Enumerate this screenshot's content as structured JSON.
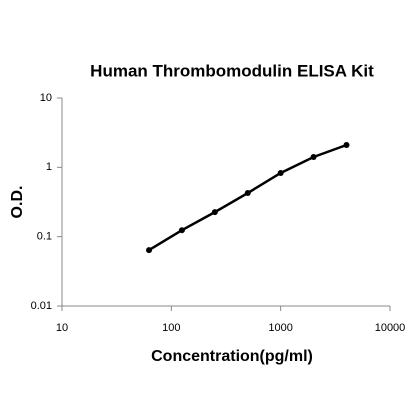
{
  "chart_data": {
    "type": "line",
    "title": "Human Thrombomodulin ELISA Kit",
    "x_label": "Concentration(pg/ml)",
    "y_label": "O.D.",
    "xscale": "log",
    "yscale": "log",
    "x": [
      62.5,
      125,
      250,
      500,
      1000,
      2000,
      4000
    ],
    "series": [
      {
        "color": "#000000",
        "values": [
          0.064,
          0.124,
          0.226,
          0.426,
          0.83,
          1.41,
          2.1
        ]
      }
    ],
    "xlim": [
      10,
      10000
    ],
    "xticks": [
      10,
      100,
      1000,
      10000
    ],
    "ylim": [
      0.01,
      10
    ],
    "yticks": [
      0.01,
      0.1,
      1,
      10
    ]
  }
}
